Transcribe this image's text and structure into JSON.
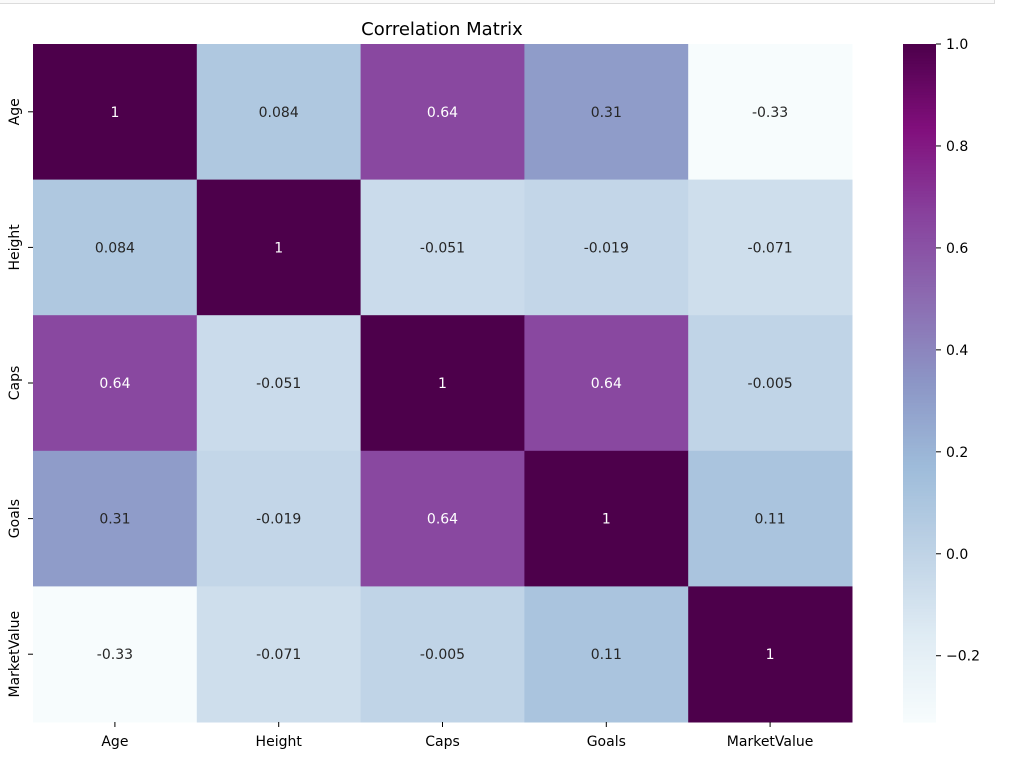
{
  "chart_data": {
    "type": "heatmap",
    "title": "Correlation Matrix",
    "x_labels": [
      "Age",
      "Height",
      "Caps",
      "Goals",
      "MarketValue"
    ],
    "y_labels": [
      "Age",
      "Height",
      "Caps",
      "Goals",
      "MarketValue"
    ],
    "values": [
      [
        1,
        0.084,
        0.64,
        0.31,
        -0.33
      ],
      [
        0.084,
        1,
        -0.051,
        -0.019,
        -0.071
      ],
      [
        0.64,
        -0.051,
        1,
        0.64,
        -0.005
      ],
      [
        0.31,
        -0.019,
        0.64,
        1,
        0.11
      ],
      [
        -0.33,
        -0.071,
        -0.005,
        0.11,
        1
      ]
    ],
    "annotations": [
      [
        "1",
        "0.084",
        "0.64",
        "0.31",
        "-0.33"
      ],
      [
        "0.084",
        "1",
        "-0.051",
        "-0.019",
        "-0.071"
      ],
      [
        "0.64",
        "-0.051",
        "1",
        "0.64",
        "-0.005"
      ],
      [
        "0.31",
        "-0.019",
        "0.64",
        "1",
        "0.11"
      ],
      [
        "-0.33",
        "-0.071",
        "-0.005",
        "0.11",
        "1"
      ]
    ],
    "colormap": "BuPu",
    "vmin": -0.33,
    "vmax": 1.0,
    "colorbar_ticks": [
      1.0,
      0.8,
      0.6,
      0.4,
      0.2,
      0.0,
      -0.2
    ],
    "colorbar_tick_labels": [
      "1.0",
      "0.8",
      "0.6",
      "0.4",
      "0.2",
      "0.0",
      "−0.2"
    ],
    "colors": {
      "cmap_stops": [
        "#f7fcfd",
        "#e0ecf4",
        "#bfd3e6",
        "#9ebcda",
        "#8c96c6",
        "#8c6bb1",
        "#88419d",
        "#810f7c",
        "#4d004b"
      ],
      "dark_text": "#262626",
      "light_text": "#ffffff"
    }
  }
}
